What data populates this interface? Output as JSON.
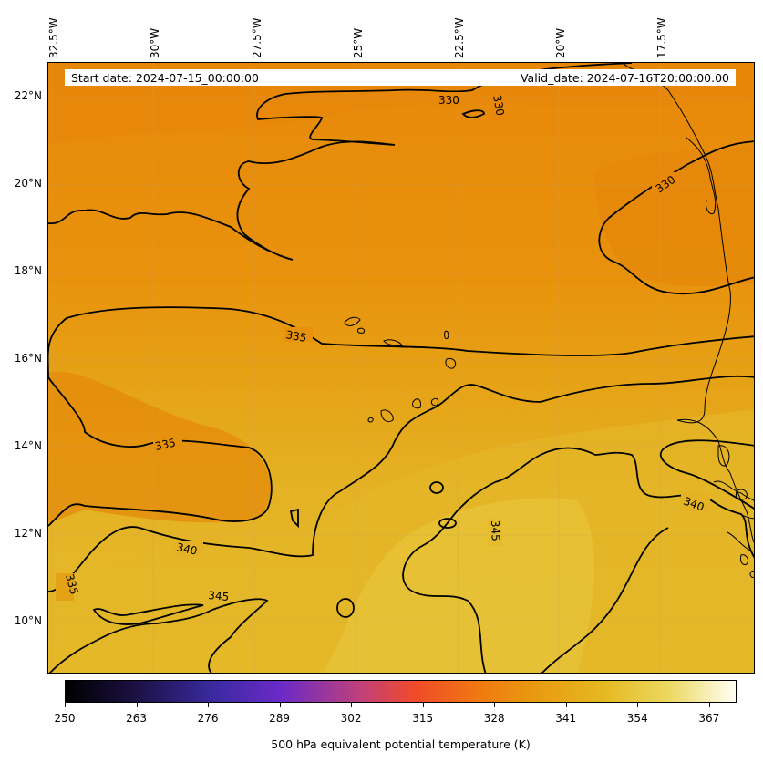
{
  "header": {
    "start_date": "Start date: 2024-07-15_00:00:00",
    "valid_date": "Valid_date: 2024-07-16T20:00:00.00"
  },
  "axes": {
    "lon_labels": [
      "32.5°W",
      "30°W",
      "27.5°W",
      "25°W",
      "22.5°W",
      "20°W",
      "17.5°W"
    ],
    "lat_labels": [
      "22°N",
      "20°N",
      "18°N",
      "16°N",
      "14°N",
      "12°N",
      "10°N"
    ]
  },
  "contour_labels": [
    "330",
    "330",
    "330",
    "335",
    "335",
    "335",
    "340",
    "340",
    "345",
    "345"
  ],
  "colorbar": {
    "ticks": [
      "250",
      "263",
      "276",
      "289",
      "302",
      "315",
      "328",
      "341",
      "354",
      "367"
    ],
    "title": "500 hPa equivalent potential temperature (K)"
  },
  "colors": {
    "warm_orange": "#e88a06",
    "mid_orange": "#e69a12",
    "gold": "#e4b424",
    "light_gold": "#e6c032"
  }
}
